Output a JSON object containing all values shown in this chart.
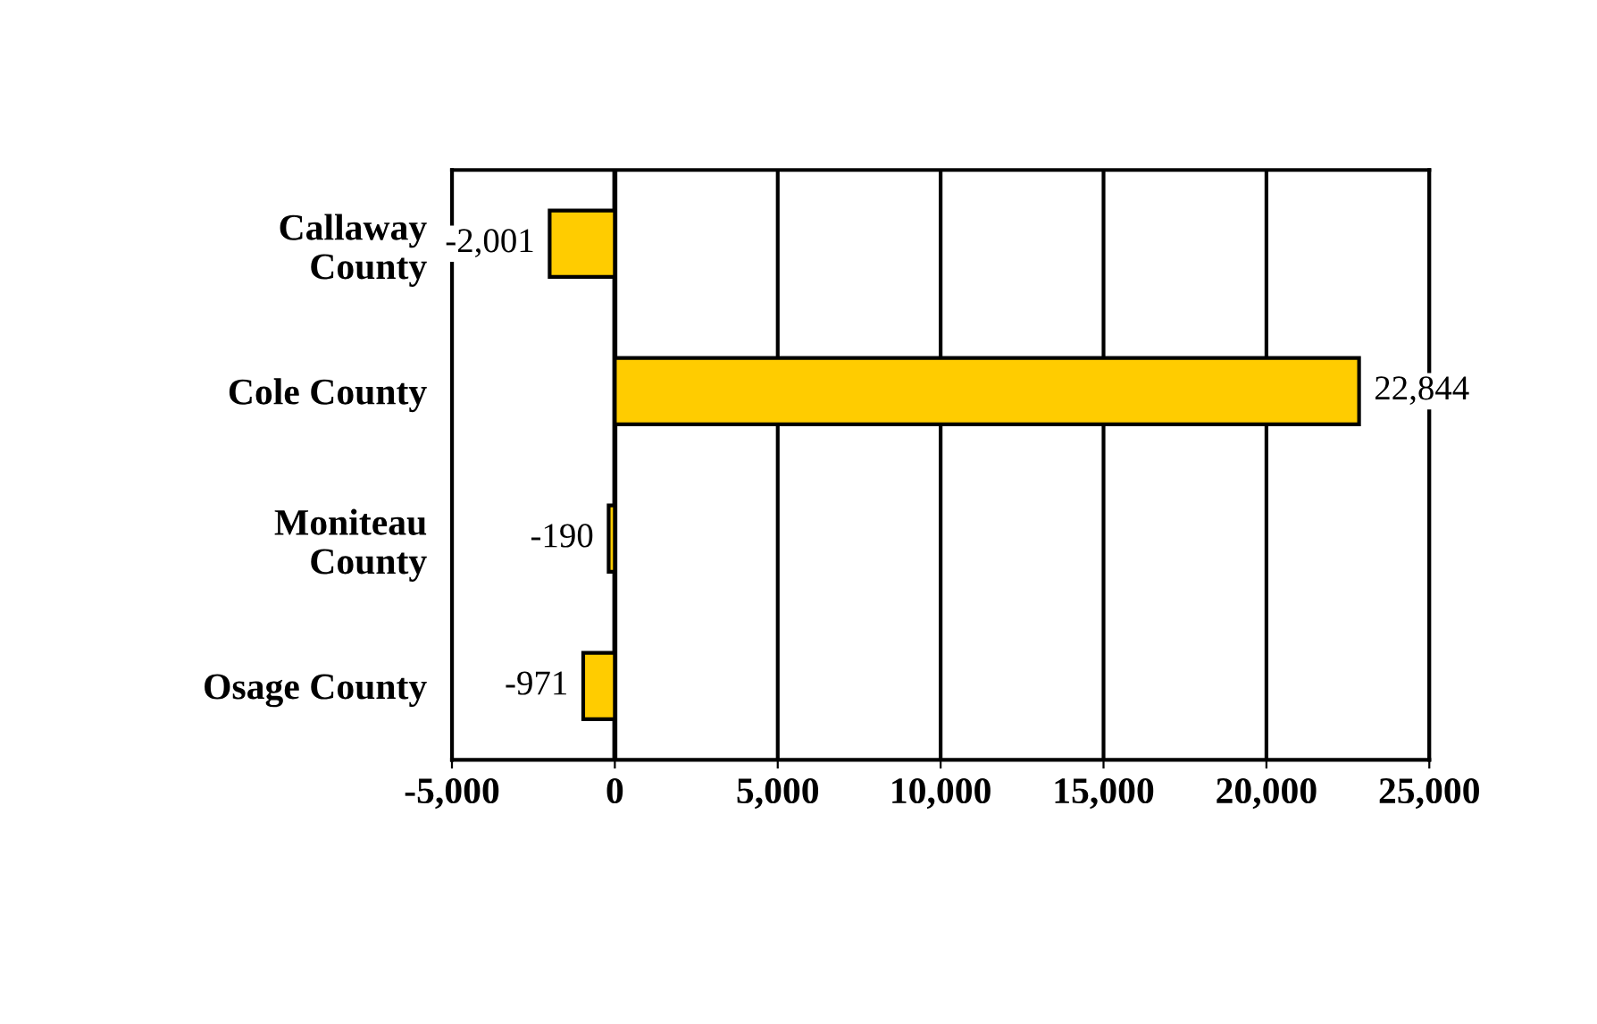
{
  "chart_data": {
    "type": "bar",
    "orientation": "horizontal",
    "categories": [
      "Callaway\nCounty",
      "Cole County",
      "Moniteau\nCounty",
      "Osage County"
    ],
    "values": [
      -2001,
      22844,
      -190,
      -971
    ],
    "value_labels": [
      "-2,001",
      "22,844",
      "-190",
      "-971"
    ],
    "color": "#ffcc00",
    "xlim": [
      -5000,
      25000
    ],
    "xticks": [
      {
        "value": -5000,
        "label": "-5,000"
      },
      0,
      {
        "value": 5000,
        "label": "5,000"
      },
      {
        "value": 10000,
        "label": "10,000"
      },
      {
        "value": 15000,
        "label": "15,000"
      },
      {
        "value": 20000,
        "label": "20,000"
      },
      {
        "value": 25000,
        "label": "25,000"
      }
    ],
    "grid": "x"
  }
}
